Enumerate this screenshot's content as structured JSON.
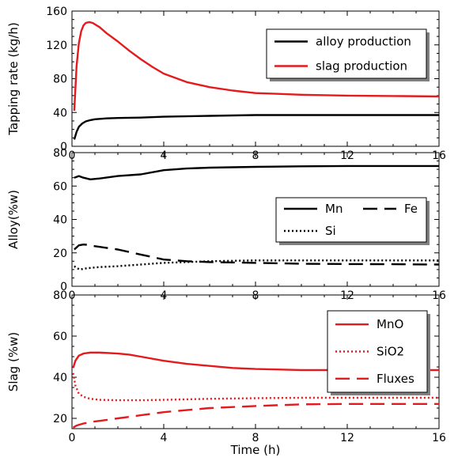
{
  "figure": {
    "xlabel": "Time (h)"
  },
  "chart_data": [
    {
      "type": "line",
      "ylabel": "Tapping rate (kg/h)",
      "xlim": [
        0,
        16
      ],
      "ylim": [
        0,
        160
      ],
      "xticks": [
        0,
        4,
        8,
        12,
        16
      ],
      "yticks": [
        0,
        40,
        80,
        120,
        160
      ],
      "grid": false,
      "legend_position": "top-right",
      "series": [
        {
          "name": "alloy production",
          "color": "#000000",
          "dash": "solid",
          "x": [
            0.1,
            0.2,
            0.3,
            0.45,
            0.6,
            0.8,
            1.0,
            1.5,
            2,
            3,
            4,
            6,
            8,
            10,
            12,
            14,
            16
          ],
          "y": [
            8,
            17,
            23,
            27,
            29.5,
            31,
            32,
            33,
            33.5,
            34,
            35,
            36,
            37,
            37,
            37,
            37,
            37
          ]
        },
        {
          "name": "slag production",
          "color": "#e41a1c",
          "dash": "solid",
          "x": [
            0.1,
            0.2,
            0.3,
            0.4,
            0.5,
            0.6,
            0.75,
            0.9,
            1.2,
            1.5,
            2,
            2.5,
            3,
            3.5,
            4,
            5,
            6,
            7,
            8,
            9,
            10,
            12,
            14,
            16
          ],
          "y": [
            42,
            95,
            122,
            136,
            143,
            146,
            147,
            146,
            141,
            134,
            124,
            113,
            103,
            94,
            86,
            76,
            70,
            66,
            63,
            62,
            61,
            60,
            59.5,
            59
          ]
        }
      ]
    },
    {
      "type": "line",
      "ylabel": "Alloy(%w)",
      "xlim": [
        0,
        16
      ],
      "ylim": [
        0,
        80
      ],
      "xticks": [
        0,
        4,
        8,
        12,
        16
      ],
      "yticks": [
        0,
        20,
        40,
        60,
        80
      ],
      "grid": false,
      "legend_position": "right",
      "series": [
        {
          "name": "Mn",
          "color": "#000000",
          "dash": "solid",
          "x": [
            0.1,
            0.3,
            0.5,
            0.8,
            1.2,
            2,
            3,
            4,
            5,
            6,
            8,
            10,
            12,
            14,
            16
          ],
          "y": [
            65,
            66,
            65,
            64,
            64.5,
            66,
            67,
            69.5,
            70.5,
            71,
            71.5,
            71.8,
            72,
            72,
            72
          ]
        },
        {
          "name": "Fe",
          "color": "#000000",
          "dash": "long-dash",
          "x": [
            0.1,
            0.3,
            0.5,
            0.7,
            1.0,
            1.5,
            2,
            2.5,
            3,
            3.5,
            4,
            5,
            6,
            8,
            10,
            12,
            14,
            16
          ],
          "y": [
            22,
            24.5,
            25,
            24.8,
            24,
            23,
            22,
            20.5,
            19,
            17.5,
            16,
            15,
            14.5,
            14,
            13.5,
            13.3,
            13.2,
            13
          ]
        },
        {
          "name": "Si",
          "color": "#000000",
          "dash": "dotted",
          "x": [
            0.1,
            0.2,
            0.35,
            0.5,
            0.8,
            1.2,
            2,
            3,
            4,
            5,
            6,
            8,
            10,
            12,
            14,
            16
          ],
          "y": [
            12,
            11,
            10,
            10.5,
            11,
            11.5,
            12,
            13,
            14,
            14.5,
            15,
            15.5,
            15.5,
            15.5,
            15.5,
            15.5
          ]
        }
      ]
    },
    {
      "type": "line",
      "ylabel": "Slag (%w)",
      "xlim": [
        0,
        16
      ],
      "ylim": [
        15,
        80
      ],
      "xticks": [
        0,
        4,
        8,
        12,
        16
      ],
      "yticks": [
        20,
        40,
        60,
        80
      ],
      "grid": false,
      "legend_position": "right",
      "series": [
        {
          "name": "MnO",
          "color": "#e41a1c",
          "dash": "solid",
          "x": [
            0.05,
            0.15,
            0.3,
            0.5,
            0.8,
            1.2,
            2,
            2.5,
            3,
            4,
            5,
            6,
            7,
            8,
            10,
            12,
            14,
            16
          ],
          "y": [
            44.5,
            48,
            50.5,
            51.5,
            52,
            52,
            51.5,
            51,
            50,
            48,
            46.5,
            45.5,
            44.5,
            44,
            43.5,
            43.5,
            43.5,
            43.5
          ]
        },
        {
          "name": "SiO2",
          "color": "#e41a1c",
          "dash": "dotted",
          "x": [
            0.05,
            0.15,
            0.3,
            0.5,
            0.8,
            1.2,
            2,
            3,
            4,
            6,
            8,
            10,
            12,
            14,
            16
          ],
          "y": [
            42,
            36,
            32,
            30.5,
            29.5,
            29,
            28.8,
            28.8,
            29,
            29.5,
            29.8,
            30,
            30,
            30,
            30
          ]
        },
        {
          "name": "Fluxes",
          "color": "#e41a1c",
          "dash": "long-dash",
          "x": [
            0.05,
            0.2,
            0.5,
            1.0,
            1.5,
            2,
            3,
            4,
            5,
            6,
            8,
            10,
            12,
            14,
            16
          ],
          "y": [
            15.5,
            16.5,
            17.5,
            18.5,
            19.2,
            20,
            21.5,
            23,
            24,
            25,
            26,
            26.8,
            27,
            27,
            27
          ]
        }
      ]
    }
  ]
}
